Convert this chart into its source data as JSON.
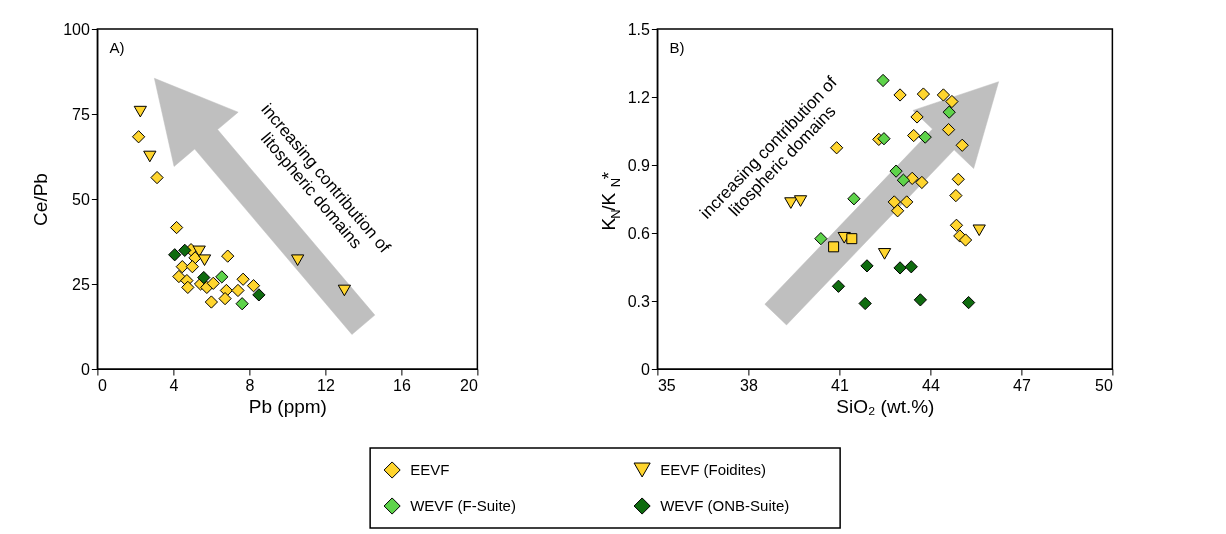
{
  "chart_data": [
    {
      "type": "scatter",
      "xlabel": "Pb (ppm)",
      "ylabel": "Ce/Pb",
      "xlim": [
        0,
        20
      ],
      "ylim": [
        0,
        100
      ],
      "xticks": [
        0,
        4,
        8,
        12,
        16,
        20
      ],
      "yticks": [
        0,
        25,
        50,
        75,
        100
      ],
      "grid": false,
      "legend": "bottom",
      "annotations": [
        "A)",
        "increasing contribution of\nlitospheric domains"
      ],
      "series": [
        {
          "name": "EEVF",
          "color": "#ffd52e",
          "marker": "diamond",
          "x": [
            2.17,
            3.14,
            4.17,
            6.86,
            5.14,
            4.47,
            5.0,
            4.29,
            4.71,
            4.76,
            5.43,
            5.76,
            6.1,
            6.0,
            6.79,
            6.72,
            7.4,
            7.67,
            8.22,
            4.93
          ],
          "values": [
            68.3,
            56.3,
            41.6,
            33.2,
            32.7,
            30.1,
            30.1,
            27.2,
            26.0,
            24.0,
            25.0,
            24.0,
            25.2,
            19.7,
            23.1,
            20.7,
            23.1,
            26.4,
            24.5,
            35.1
          ]
        },
        {
          "name": "EEVF (Foidites)",
          "color": "#ffd52e",
          "marker": "triangle",
          "x": [
            2.26,
            2.76,
            5.36,
            5.64,
            10.54,
            13.0
          ],
          "values": [
            75.7,
            62.5,
            34.6,
            32.0,
            32.0,
            23.1
          ]
        },
        {
          "name": "WEVF (F-Suite)",
          "color": "#5ed34a",
          "marker": "diamond",
          "x": [
            6.55,
            7.62
          ],
          "values": [
            27.1,
            19.2
          ]
        },
        {
          "name": "WEVF (ONB-Suite)",
          "color": "#0f6b0f",
          "marker": "diamond",
          "x": [
            4.07,
            4.6,
            5.6,
            8.5
          ],
          "values": [
            33.6,
            34.9,
            26.9,
            21.8
          ]
        }
      ]
    },
    {
      "type": "scatter",
      "xlabel": "SiO₂ (wt.%)",
      "ylabel": "K$_{N}$/K$_{N}$*",
      "xlim": [
        35,
        50
      ],
      "ylim": [
        0,
        1.5
      ],
      "xticks": [
        35,
        38,
        41,
        44,
        47,
        50
      ],
      "yticks": [
        0,
        0.3,
        0.6,
        0.9,
        1.2,
        1.5
      ],
      "grid": false,
      "legend": "bottom",
      "annotations": [
        "B)",
        "increasing contribution of\nlitospheric domains"
      ],
      "series": [
        {
          "name": "EEVF",
          "color": "#ffd52e",
          "marker": "diamond",
          "x": [
            43.0,
            43.77,
            44.43,
            44.71,
            43.56,
            44.6,
            43.45,
            42.3,
            40.91,
            45.05,
            43.4,
            43.72,
            44.92,
            44.84,
            42.81,
            43.22,
            42.92,
            44.86,
            44.97,
            45.16
          ],
          "values": [
            1.209,
            1.213,
            1.209,
            1.18,
            1.112,
            1.056,
            1.03,
            1.013,
            0.976,
            0.987,
            0.841,
            0.823,
            0.837,
            0.765,
            0.737,
            0.737,
            0.698,
            0.634,
            0.587,
            0.569
          ]
        },
        {
          "name": "EEVF (Foidites)",
          "color": "#ffd52e",
          "marker": "triangle",
          "x": [
            39.4,
            39.72,
            41.16,
            42.49,
            45.61
          ],
          "values": [
            0.732,
            0.741,
            0.579,
            0.508,
            0.612
          ]
        },
        {
          "name": "WEVF (F-Suite)",
          "color": "#5ed34a",
          "marker": "diamond",
          "x": [
            42.44,
            44.62,
            43.83,
            42.47,
            42.87,
            43.11,
            41.48,
            40.39
          ],
          "values": [
            1.273,
            1.133,
            1.023,
            1.016,
            0.873,
            0.833,
            0.751,
            0.575
          ]
        },
        {
          "name": "WEVF (ONB-Suite)",
          "color": "#0f6b0f",
          "marker": "diamond",
          "x": [
            41.91,
            43.0,
            43.37,
            40.97,
            41.85,
            43.67,
            45.26
          ],
          "values": [
            0.455,
            0.446,
            0.451,
            0.365,
            0.289,
            0.305,
            0.293
          ]
        },
        {
          "color": "#ffd52e",
          "marker": "square",
          "x": [
            40.81,
            41.41
          ],
          "values": [
            0.539,
            0.575
          ]
        }
      ]
    }
  ]
}
